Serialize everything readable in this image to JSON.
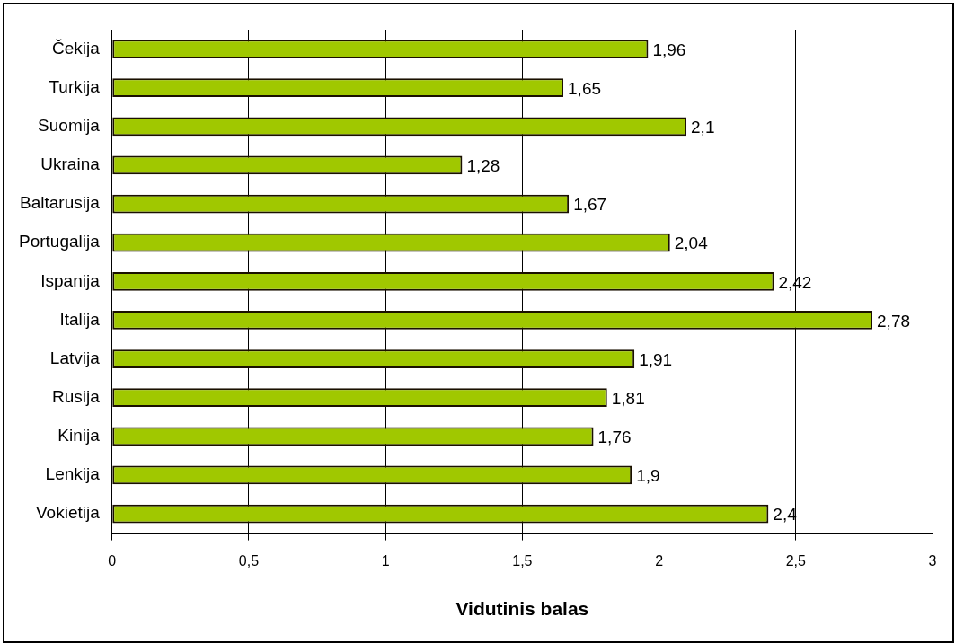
{
  "chart_data": {
    "type": "bar",
    "orientation": "horizontal",
    "xlabel": "Vidutinis balas",
    "categories": [
      "Čekija",
      "Turkija",
      "Suomija",
      "Ukraina",
      "Baltarusija",
      "Portugalija",
      "Ispanija",
      "Italija",
      "Latvija",
      "Rusija",
      "Kinija",
      "Lenkija",
      "Vokietija"
    ],
    "values": [
      1.96,
      1.65,
      2.1,
      1.28,
      1.67,
      2.04,
      2.42,
      2.78,
      1.91,
      1.81,
      1.76,
      1.9,
      2.4
    ],
    "value_labels": [
      "1,96",
      "1,65",
      "2,1",
      "1,28",
      "1,67",
      "2,04",
      "2,42",
      "2,78",
      "1,91",
      "1,81",
      "1,76",
      "1,9",
      "2,4"
    ],
    "color": "#a0c800",
    "xlim": [
      0,
      3
    ],
    "xticks": [
      0,
      {
        "value": 0.5,
        "label": "0,5"
      },
      1,
      {
        "value": 1.5,
        "label": "1,5"
      },
      2,
      {
        "value": 2.5,
        "label": "2,5"
      },
      3
    ],
    "grid": "x",
    "legend": false
  }
}
